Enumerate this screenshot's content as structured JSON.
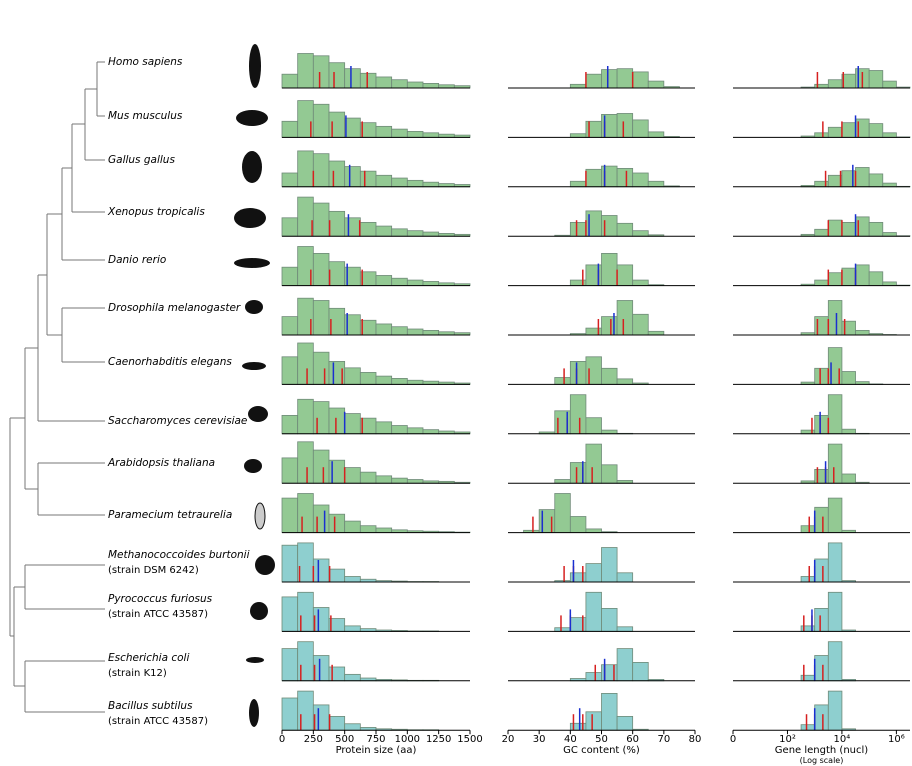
{
  "chart_data": {
    "type": "histogram",
    "ylim": [
      0,
      100
    ],
    "panels": [
      {
        "key": "protein",
        "xlabel": "Protein size (aa)",
        "xlim": [
          0,
          1500
        ],
        "xticks": [
          0,
          250,
          500,
          750,
          1000,
          1250,
          1500
        ],
        "bins": [
          0,
          125,
          250,
          375,
          500,
          625,
          750,
          875,
          1000,
          1125,
          1250,
          1375,
          1500
        ]
      },
      {
        "key": "gc",
        "xlabel": "GC content (%)",
        "xlim": [
          20,
          80
        ],
        "xticks": [
          20,
          30,
          40,
          50,
          60,
          70,
          80
        ],
        "bins": [
          20,
          25,
          30,
          35,
          40,
          45,
          50,
          55,
          60,
          65,
          70,
          75,
          80
        ]
      },
      {
        "key": "gene",
        "xlabel": "Gene length (nucl)",
        "xsublabel": "(Log scale)",
        "xlim": [
          0,
          6.5
        ],
        "xticks": [
          0,
          {
            "value": 2,
            "label": "10²"
          },
          {
            "value": 4,
            "label": "10⁴"
          },
          {
            "value": 6,
            "label": "10⁶"
          }
        ],
        "bins": [
          0,
          0.5,
          1,
          1.5,
          2,
          2.5,
          3,
          3.5,
          4,
          4.5,
          5,
          5.5,
          6,
          6.5
        ]
      }
    ],
    "species": [
      {
        "name": "Homo sapiens",
        "color": "#93c993",
        "protein": {
          "values": [
            30,
            75,
            70,
            55,
            42,
            32,
            24,
            18,
            13,
            10,
            7,
            5
          ],
          "red": [
            300,
            415,
            680
          ],
          "blue": 550
        },
        "gc": {
          "values": [
            0,
            0,
            0,
            0,
            8,
            30,
            40,
            42,
            35,
            15,
            3,
            0
          ],
          "red": [
            45,
            52,
            60
          ],
          "blue": 52
        },
        "gene": {
          "values": [
            0,
            0,
            0,
            0,
            0,
            2,
            8,
            18,
            30,
            42,
            38,
            15,
            2
          ],
          "red": [
            3.1,
            4.05,
            4.75
          ],
          "blue": 4.6
        }
      },
      {
        "name": "Mus musculus",
        "color": "#93c993",
        "protein": {
          "values": [
            35,
            80,
            72,
            55,
            42,
            32,
            24,
            18,
            13,
            10,
            7,
            5
          ],
          "red": [
            230,
            400,
            640
          ],
          "blue": 510
        },
        "gc": {
          "values": [
            0,
            0,
            0,
            0,
            8,
            35,
            50,
            52,
            38,
            12,
            2,
            0
          ],
          "red": [
            46,
            51,
            57
          ],
          "blue": 51
        },
        "gene": {
          "values": [
            0,
            0,
            0,
            0,
            0,
            3,
            10,
            22,
            32,
            40,
            30,
            10,
            1
          ],
          "red": [
            3.3,
            4.0,
            4.6
          ],
          "blue": 4.5
        }
      },
      {
        "name": "Gallus gallus",
        "color": "#93c993",
        "protein": {
          "values": [
            30,
            78,
            72,
            56,
            44,
            34,
            25,
            19,
            14,
            10,
            7,
            5
          ],
          "red": [
            250,
            410,
            660
          ],
          "blue": 540
        },
        "gc": {
          "values": [
            0,
            0,
            0,
            0,
            12,
            38,
            45,
            40,
            30,
            12,
            2,
            0
          ],
          "red": [
            45,
            51,
            58
          ],
          "blue": 51
        },
        "gene": {
          "values": [
            0,
            0,
            0,
            0,
            0,
            3,
            12,
            25,
            35,
            42,
            28,
            8,
            1
          ],
          "red": [
            3.4,
            3.95,
            4.5
          ],
          "blue": 4.4
        }
      },
      {
        "name": "Xenopus tropicalis",
        "color": "#93c993",
        "protein": {
          "values": [
            40,
            85,
            72,
            54,
            40,
            30,
            22,
            16,
            12,
            9,
            6,
            4
          ],
          "red": [
            240,
            380,
            620
          ],
          "blue": 530
        },
        "gc": {
          "values": [
            0,
            0,
            0,
            2,
            30,
            55,
            45,
            28,
            12,
            3,
            0,
            0
          ],
          "red": [
            42,
            45,
            51
          ],
          "blue": 46
        },
        "gene": {
          "values": [
            0,
            0,
            0,
            0,
            0,
            4,
            15,
            35,
            30,
            42,
            30,
            8,
            1
          ],
          "red": [
            3.5,
            4.0,
            4.6
          ],
          "blue": 4.5
        }
      },
      {
        "name": "Danio rerio",
        "color": "#93c993",
        "protein": {
          "values": [
            40,
            85,
            70,
            52,
            40,
            30,
            22,
            16,
            12,
            9,
            6,
            4
          ],
          "red": [
            230,
            380,
            640
          ],
          "blue": 520
        },
        "gc": {
          "values": [
            0,
            0,
            0,
            0,
            12,
            45,
            70,
            45,
            12,
            2,
            0,
            0
          ],
          "red": [
            44,
            49,
            55
          ],
          "blue": 49
        },
        "gene": {
          "values": [
            0,
            0,
            0,
            0,
            0,
            3,
            12,
            28,
            38,
            45,
            30,
            8,
            1
          ],
          "red": [
            3.5,
            4.0,
            4.5
          ],
          "blue": 4.5
        }
      },
      {
        "name": "Drosophila melanogaster",
        "color": "#93c993",
        "protein": {
          "values": [
            40,
            80,
            75,
            58,
            44,
            32,
            24,
            18,
            13,
            10,
            7,
            5
          ],
          "red": [
            230,
            390,
            640
          ],
          "blue": 520
        },
        "gc": {
          "values": [
            0,
            0,
            0,
            0,
            3,
            15,
            40,
            75,
            45,
            8,
            0,
            0
          ],
          "red": [
            49,
            53,
            57
          ],
          "blue": 54
        },
        "gene": {
          "values": [
            0,
            0,
            0,
            0,
            0,
            5,
            40,
            75,
            30,
            10,
            3,
            1,
            0
          ],
          "red": [
            3.1,
            3.5,
            4.1
          ],
          "blue": 3.8
        }
      },
      {
        "name": "Caenorhabditis elegans",
        "color": "#93c993",
        "protein": {
          "values": [
            60,
            90,
            70,
            50,
            36,
            26,
            18,
            13,
            9,
            7,
            5,
            3
          ],
          "red": [
            200,
            340,
            480
          ],
          "blue": 410
        },
        "gc": {
          "values": [
            0,
            0,
            0,
            15,
            50,
            60,
            35,
            12,
            3,
            0,
            0,
            0
          ],
          "red": [
            38,
            42,
            46
          ],
          "blue": 42
        },
        "gene": {
          "values": [
            0,
            0,
            0,
            0,
            0,
            5,
            35,
            80,
            28,
            6,
            1,
            0,
            0
          ],
          "red": [
            3.2,
            3.5,
            3.9
          ],
          "blue": 3.6
        }
      },
      {
        "name": "Saccharomyces cerevisiae",
        "color": "#93c993",
        "protein": {
          "values": [
            40,
            75,
            70,
            56,
            44,
            34,
            26,
            18,
            13,
            9,
            6,
            4
          ],
          "red": [
            280,
            430,
            640
          ],
          "blue": 500
        },
        "gc": {
          "values": [
            0,
            0,
            4,
            50,
            85,
            35,
            8,
            1,
            0,
            0,
            0,
            0
          ],
          "red": [
            36,
            39,
            43
          ],
          "blue": 39
        },
        "gene": {
          "values": [
            0,
            0,
            0,
            0,
            0,
            8,
            40,
            85,
            10,
            1,
            0,
            0,
            0
          ],
          "red": [
            2.9,
            3.2,
            3.5
          ],
          "blue": 3.2
        }
      },
      {
        "name": "Arabidopsis thaliana",
        "color": "#93c993",
        "protein": {
          "values": [
            55,
            90,
            72,
            50,
            34,
            24,
            16,
            11,
            8,
            5,
            4,
            2
          ],
          "red": [
            200,
            330,
            500
          ],
          "blue": 400
        },
        "gc": {
          "values": [
            0,
            0,
            0,
            8,
            45,
            85,
            40,
            6,
            0,
            0,
            0,
            0
          ],
          "red": [
            42,
            44,
            47
          ],
          "blue": 44
        },
        "gene": {
          "values": [
            0,
            0,
            0,
            0,
            0,
            5,
            30,
            85,
            20,
            2,
            0,
            0,
            0
          ],
          "red": [
            3.1,
            3.4,
            3.7
          ],
          "blue": 3.4
        }
      },
      {
        "name": "Paramecium tetraurelia",
        "color": "#93c993",
        "protein": {
          "values": [
            75,
            85,
            60,
            40,
            25,
            15,
            10,
            6,
            4,
            3,
            2,
            1
          ],
          "red": [
            160,
            280,
            420
          ],
          "blue": 340
        },
        "gc": {
          "values": [
            0,
            5,
            50,
            85,
            35,
            8,
            2,
            0,
            0,
            0,
            0,
            0
          ],
          "red": [
            28,
            31,
            34
          ],
          "blue": 31
        },
        "gene": {
          "values": [
            0,
            0,
            0,
            0,
            0,
            15,
            55,
            75,
            5,
            0,
            0,
            0,
            0
          ],
          "red": [
            2.8,
            3.0,
            3.3
          ],
          "blue": 3.0
        }
      },
      {
        "name": "Methanococcoides burtonii",
        "strain": "(strain DSM 6242)",
        "color": "#8ecfcf",
        "protein": {
          "values": [
            80,
            85,
            50,
            28,
            12,
            6,
            3,
            2,
            1,
            1,
            0,
            0
          ],
          "red": [
            140,
            250,
            380
          ],
          "blue": 290
        },
        "gc": {
          "values": [
            0,
            0,
            0,
            3,
            20,
            40,
            75,
            20,
            0,
            0,
            0,
            0
          ],
          "red": [
            38,
            41,
            44
          ],
          "blue": 41
        },
        "gene": {
          "values": [
            0,
            0,
            0,
            0,
            0,
            12,
            50,
            85,
            3,
            0,
            0,
            0,
            0
          ],
          "red": [
            2.8,
            3.0,
            3.3
          ],
          "blue": 3.0
        }
      },
      {
        "name": "Pyrococcus furiosus",
        "strain": "(strain ATCC 43587)",
        "color": "#8ecfcf",
        "protein": {
          "values": [
            75,
            85,
            52,
            28,
            12,
            6,
            3,
            2,
            1,
            1,
            0,
            0
          ],
          "red": [
            150,
            260,
            390
          ],
          "blue": 290
        },
        "gc": {
          "values": [
            0,
            0,
            0,
            8,
            30,
            85,
            50,
            10,
            0,
            0,
            0,
            0
          ],
          "red": [
            37,
            40,
            44
          ],
          "blue": 40
        },
        "gene": {
          "values": [
            0,
            0,
            0,
            0,
            0,
            12,
            50,
            85,
            3,
            0,
            0,
            0,
            0
          ],
          "red": [
            2.6,
            2.9,
            3.2
          ],
          "blue": 2.9
        }
      },
      {
        "name": "Escherichia coli",
        "strain": "(strain K12)",
        "color": "#8ecfcf",
        "protein": {
          "values": [
            70,
            85,
            55,
            30,
            14,
            6,
            3,
            2,
            1,
            1,
            0,
            0
          ],
          "red": [
            150,
            260,
            400
          ],
          "blue": 300
        },
        "gc": {
          "values": [
            0,
            0,
            0,
            0,
            5,
            18,
            35,
            70,
            40,
            3,
            0,
            0
          ],
          "red": [
            48,
            51,
            54
          ],
          "blue": 51
        },
        "gene": {
          "values": [
            0,
            0,
            0,
            0,
            0,
            12,
            55,
            85,
            3,
            0,
            0,
            0,
            0
          ],
          "red": [
            2.6,
            3.0,
            3.3
          ],
          "blue": 3.0
        }
      },
      {
        "name": "Bacillus subtilus",
        "strain": "(strain ATCC 43587)",
        "color": "#8ecfcf",
        "protein": {
          "values": [
            70,
            85,
            55,
            30,
            14,
            6,
            3,
            2,
            1,
            1,
            0,
            0
          ],
          "red": [
            150,
            260,
            380
          ],
          "blue": 290
        },
        "gc": {
          "values": [
            0,
            0,
            0,
            0,
            15,
            40,
            80,
            30,
            2,
            0,
            0,
            0
          ],
          "red": [
            41,
            44,
            47
          ],
          "blue": 43
        },
        "gene": {
          "values": [
            0,
            0,
            0,
            0,
            0,
            12,
            55,
            85,
            3,
            0,
            0,
            0,
            0
          ],
          "red": [
            2.7,
            3.0,
            3.3
          ],
          "blue": 3.0
        }
      }
    ]
  }
}
